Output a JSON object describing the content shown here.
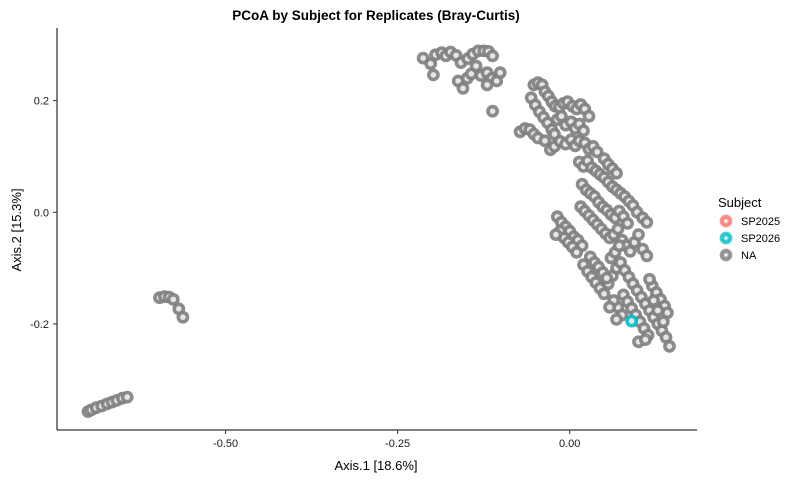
{
  "chart_data": {
    "type": "scatter",
    "title": "PCoA by Subject for Replicates (Bray-Curtis)",
    "xlabel": "Axis.1   [18.6%]",
    "ylabel": "Axis.2   [15.3%]",
    "xlim": [
      -0.745,
      0.185
    ],
    "ylim": [
      -0.39,
      0.33
    ],
    "x_ticks": [
      -0.5,
      -0.25,
      0.0
    ],
    "x_tick_labels": [
      "-0.50",
      "-0.25",
      "0.00"
    ],
    "y_ticks": [
      -0.2,
      0.0,
      0.2
    ],
    "y_tick_labels": [
      "-0.2",
      "0.0",
      "0.2"
    ],
    "grid": false,
    "legend": {
      "title": "Subject",
      "placement": "right",
      "entries": [
        {
          "name": "SP2025",
          "color": "#F8766D"
        },
        {
          "name": "SP2026",
          "color": "#00BFC4"
        },
        {
          "name": "NA",
          "color": "#7F7F7F"
        }
      ]
    },
    "series": [
      {
        "name": "SP2025",
        "color": "#F8766D",
        "points": []
      },
      {
        "name": "SP2026",
        "color": "#00BFC4",
        "points": [
          [
            0.09,
            -0.195
          ]
        ]
      },
      {
        "name": "NA",
        "color": "#7F7F7F",
        "points": [
          [
            -0.7,
            -0.357
          ],
          [
            -0.695,
            -0.354
          ],
          [
            -0.688,
            -0.35
          ],
          [
            -0.68,
            -0.347
          ],
          [
            -0.672,
            -0.343
          ],
          [
            -0.665,
            -0.34
          ],
          [
            -0.658,
            -0.337
          ],
          [
            -0.65,
            -0.333
          ],
          [
            -0.643,
            -0.331
          ],
          [
            -0.596,
            -0.153
          ],
          [
            -0.589,
            -0.151
          ],
          [
            -0.582,
            -0.152
          ],
          [
            -0.576,
            -0.156
          ],
          [
            -0.568,
            -0.173
          ],
          [
            -0.562,
            -0.188
          ],
          [
            -0.213,
            0.276
          ],
          [
            -0.202,
            0.266
          ],
          [
            -0.195,
            0.282
          ],
          [
            -0.186,
            0.286
          ],
          [
            -0.18,
            0.28
          ],
          [
            -0.173,
            0.287
          ],
          [
            -0.165,
            0.281
          ],
          [
            -0.158,
            0.268
          ],
          [
            -0.148,
            0.275
          ],
          [
            -0.141,
            0.283
          ],
          [
            -0.133,
            0.289
          ],
          [
            -0.125,
            0.289
          ],
          [
            -0.118,
            0.288
          ],
          [
            -0.112,
            0.28
          ],
          [
            -0.198,
            0.246
          ],
          [
            -0.162,
            0.235
          ],
          [
            -0.155,
            0.222
          ],
          [
            -0.149,
            0.24
          ],
          [
            -0.143,
            0.248
          ],
          [
            -0.136,
            0.262
          ],
          [
            -0.129,
            0.245
          ],
          [
            -0.12,
            0.25
          ],
          [
            -0.113,
            0.24
          ],
          [
            -0.106,
            0.235
          ],
          [
            -0.101,
            0.25
          ],
          [
            -0.12,
            0.228
          ],
          [
            -0.112,
            0.181
          ],
          [
            -0.052,
            0.228
          ],
          [
            -0.046,
            0.232
          ],
          [
            -0.04,
            0.228
          ],
          [
            -0.036,
            0.216
          ],
          [
            -0.031,
            0.208
          ],
          [
            -0.026,
            0.198
          ],
          [
            -0.021,
            0.19
          ],
          [
            -0.015,
            0.188
          ],
          [
            -0.009,
            0.195
          ],
          [
            -0.003,
            0.198
          ],
          [
            0.004,
            0.19
          ],
          [
            0.01,
            0.185
          ],
          [
            0.016,
            0.193
          ],
          [
            0.022,
            0.185
          ],
          [
            0.028,
            0.172
          ],
          [
            -0.056,
            0.205
          ],
          [
            -0.05,
            0.192
          ],
          [
            -0.044,
            0.18
          ],
          [
            -0.038,
            0.17
          ],
          [
            -0.032,
            0.16
          ],
          [
            -0.026,
            0.148
          ],
          [
            -0.022,
            0.14
          ],
          [
            -0.018,
            0.166
          ],
          [
            -0.012,
            0.172
          ],
          [
            -0.006,
            0.156
          ],
          [
            0.002,
            0.162
          ],
          [
            0.008,
            0.15
          ],
          [
            0.014,
            0.158
          ],
          [
            0.02,
            0.146
          ],
          [
            -0.072,
            0.144
          ],
          [
            -0.065,
            0.15
          ],
          [
            -0.058,
            0.148
          ],
          [
            -0.052,
            0.14
          ],
          [
            -0.046,
            0.133
          ],
          [
            -0.036,
            0.128
          ],
          [
            -0.028,
            0.112
          ],
          [
            -0.022,
            0.118
          ],
          [
            -0.014,
            0.127
          ],
          [
            -0.006,
            0.122
          ],
          [
            0.002,
            0.13
          ],
          [
            0.008,
            0.119
          ],
          [
            0.014,
            0.128
          ],
          [
            0.022,
            0.124
          ],
          [
            0.028,
            0.113
          ],
          [
            0.034,
            0.118
          ],
          [
            0.04,
            0.108
          ],
          [
            0.05,
            0.096
          ],
          [
            0.056,
            0.086
          ],
          [
            0.062,
            0.078
          ],
          [
            0.068,
            0.07
          ],
          [
            0.014,
            0.09
          ],
          [
            0.02,
            0.082
          ],
          [
            0.026,
            0.092
          ],
          [
            0.032,
            0.08
          ],
          [
            0.038,
            0.074
          ],
          [
            0.044,
            0.068
          ],
          [
            0.05,
            0.062
          ],
          [
            0.056,
            0.054
          ],
          [
            0.062,
            0.046
          ],
          [
            0.068,
            0.04
          ],
          [
            0.074,
            0.034
          ],
          [
            0.08,
            0.028
          ],
          [
            0.086,
            0.02
          ],
          [
            0.092,
            0.012
          ],
          [
            0.098,
            0.0
          ],
          [
            0.106,
            -0.01
          ],
          [
            0.112,
            -0.018
          ],
          [
            0.018,
            0.05
          ],
          [
            0.024,
            0.04
          ],
          [
            0.03,
            0.034
          ],
          [
            0.036,
            0.028
          ],
          [
            0.042,
            0.018
          ],
          [
            0.048,
            0.01
          ],
          [
            0.054,
            0.004
          ],
          [
            0.06,
            -0.004
          ],
          [
            0.066,
            -0.01
          ],
          [
            0.072,
            0.002
          ],
          [
            0.078,
            -0.008
          ],
          [
            0.084,
            -0.02
          ],
          [
            0.016,
            0.01
          ],
          [
            0.022,
            0.002
          ],
          [
            0.028,
            -0.006
          ],
          [
            0.034,
            -0.014
          ],
          [
            0.04,
            -0.022
          ],
          [
            0.046,
            -0.03
          ],
          [
            0.052,
            -0.038
          ],
          [
            0.058,
            -0.046
          ],
          [
            0.064,
            -0.04
          ],
          [
            0.07,
            -0.03
          ],
          [
            0.076,
            -0.05
          ],
          [
            0.082,
            -0.06
          ],
          [
            0.088,
            -0.07
          ],
          [
            0.094,
            -0.054
          ],
          [
            0.1,
            -0.04
          ],
          [
            0.106,
            -0.066
          ],
          [
            0.112,
            -0.078
          ],
          [
            -0.018,
            -0.008
          ],
          [
            -0.012,
            -0.018
          ],
          [
            -0.006,
            -0.026
          ],
          [
            0.0,
            -0.034
          ],
          [
            0.006,
            -0.044
          ],
          [
            0.012,
            -0.05
          ],
          [
            0.018,
            -0.06
          ],
          [
            -0.014,
            -0.034
          ],
          [
            -0.008,
            -0.046
          ],
          [
            -0.002,
            -0.054
          ],
          [
            0.004,
            -0.062
          ],
          [
            0.01,
            -0.072
          ],
          [
            -0.02,
            -0.04
          ],
          [
            0.02,
            -0.094
          ],
          [
            0.026,
            -0.106
          ],
          [
            0.032,
            -0.116
          ],
          [
            0.038,
            -0.126
          ],
          [
            0.044,
            -0.136
          ],
          [
            0.05,
            -0.146
          ],
          [
            0.056,
            -0.128
          ],
          [
            0.062,
            -0.114
          ],
          [
            0.068,
            -0.1
          ],
          [
            0.074,
            -0.09
          ],
          [
            0.08,
            -0.104
          ],
          [
            0.086,
            -0.116
          ],
          [
            0.092,
            -0.128
          ],
          [
            0.098,
            -0.14
          ],
          [
            0.104,
            -0.152
          ],
          [
            0.11,
            -0.164
          ],
          [
            0.116,
            -0.176
          ],
          [
            0.122,
            -0.188
          ],
          [
            0.128,
            -0.2
          ],
          [
            0.134,
            -0.212
          ],
          [
            0.14,
            -0.224
          ],
          [
            0.145,
            -0.24
          ],
          [
            0.03,
            -0.08
          ],
          [
            0.036,
            -0.09
          ],
          [
            0.042,
            -0.098
          ],
          [
            0.048,
            -0.108
          ],
          [
            0.054,
            -0.118
          ],
          [
            0.06,
            -0.082
          ],
          [
            0.066,
            -0.072
          ],
          [
            0.072,
            -0.06
          ],
          [
            0.078,
            -0.148
          ],
          [
            0.084,
            -0.16
          ],
          [
            0.09,
            -0.172
          ],
          [
            0.096,
            -0.184
          ],
          [
            0.102,
            -0.196
          ],
          [
            0.108,
            -0.208
          ],
          [
            0.114,
            -0.22
          ],
          [
            0.12,
            -0.132
          ],
          [
            0.126,
            -0.144
          ],
          [
            0.132,
            -0.156
          ],
          [
            0.138,
            -0.168
          ],
          [
            0.142,
            -0.18
          ],
          [
            0.136,
            -0.196
          ],
          [
            0.128,
            -0.176
          ],
          [
            0.122,
            -0.158
          ],
          [
            0.116,
            -0.12
          ],
          [
            0.1,
            -0.232
          ],
          [
            0.11,
            -0.228
          ],
          [
            0.07,
            -0.17
          ],
          [
            0.064,
            -0.158
          ],
          [
            0.076,
            -0.184
          ],
          [
            0.068,
            -0.192
          ],
          [
            0.058,
            -0.17
          ]
        ]
      }
    ]
  }
}
